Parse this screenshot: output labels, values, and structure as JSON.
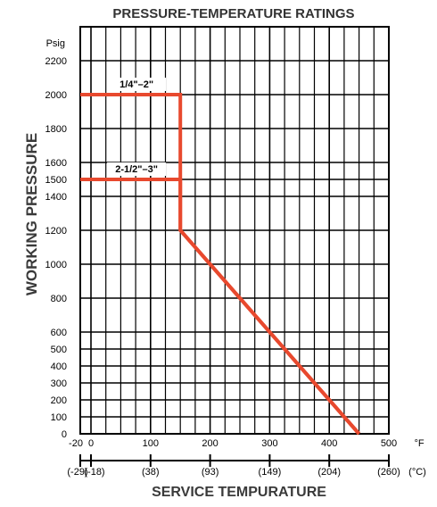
{
  "chart_data": {
    "type": "line",
    "title": "PRESSURE-TEMPERATURE RATINGS",
    "xlabel": "SERVICE TEMPURATURE",
    "ylabel": "WORKING PRESSURE",
    "y_unit": "Psig",
    "x_unit": "°F",
    "x2_unit": "(°C)",
    "xlim": [
      -20,
      500
    ],
    "ylim": [
      0,
      2300
    ],
    "grid": true,
    "y_ticks": [
      0,
      100,
      200,
      300,
      400,
      500,
      600,
      800,
      1000,
      1200,
      1400,
      1500,
      1600,
      1800,
      2000,
      2200
    ],
    "x_ticks": [
      {
        "value": -20,
        "label": "-20"
      },
      {
        "value": 0,
        "label": "0"
      },
      {
        "value": 100,
        "label": "100"
      },
      {
        "value": 200,
        "label": "200"
      },
      {
        "value": 300,
        "label": "300"
      },
      {
        "value": 400,
        "label": "400"
      },
      {
        "value": 500,
        "label": "500"
      }
    ],
    "x2_ticks": [
      {
        "value": -20,
        "label": "(-29)"
      },
      {
        "value": 0,
        "label": "(-18)"
      },
      {
        "value": 100,
        "label": "(38)"
      },
      {
        "value": 200,
        "label": "(93)"
      },
      {
        "value": 300,
        "label": "(149)"
      },
      {
        "value": 400,
        "label": "(204)"
      },
      {
        "value": 500,
        "label": "(260)"
      }
    ],
    "series": [
      {
        "name": "1/4\"–2\"",
        "color": "#e8492e",
        "x": [
          -20,
          150,
          150,
          450
        ],
        "y": [
          2000,
          2000,
          1200,
          0
        ]
      },
      {
        "name": "2-1/2\"–3\"",
        "color": "#e8492e",
        "x": [
          -20,
          150,
          150,
          450
        ],
        "y": [
          1500,
          1500,
          1200,
          0
        ]
      }
    ],
    "colors": {
      "line": "#e8492e",
      "grid": "#000000"
    }
  }
}
